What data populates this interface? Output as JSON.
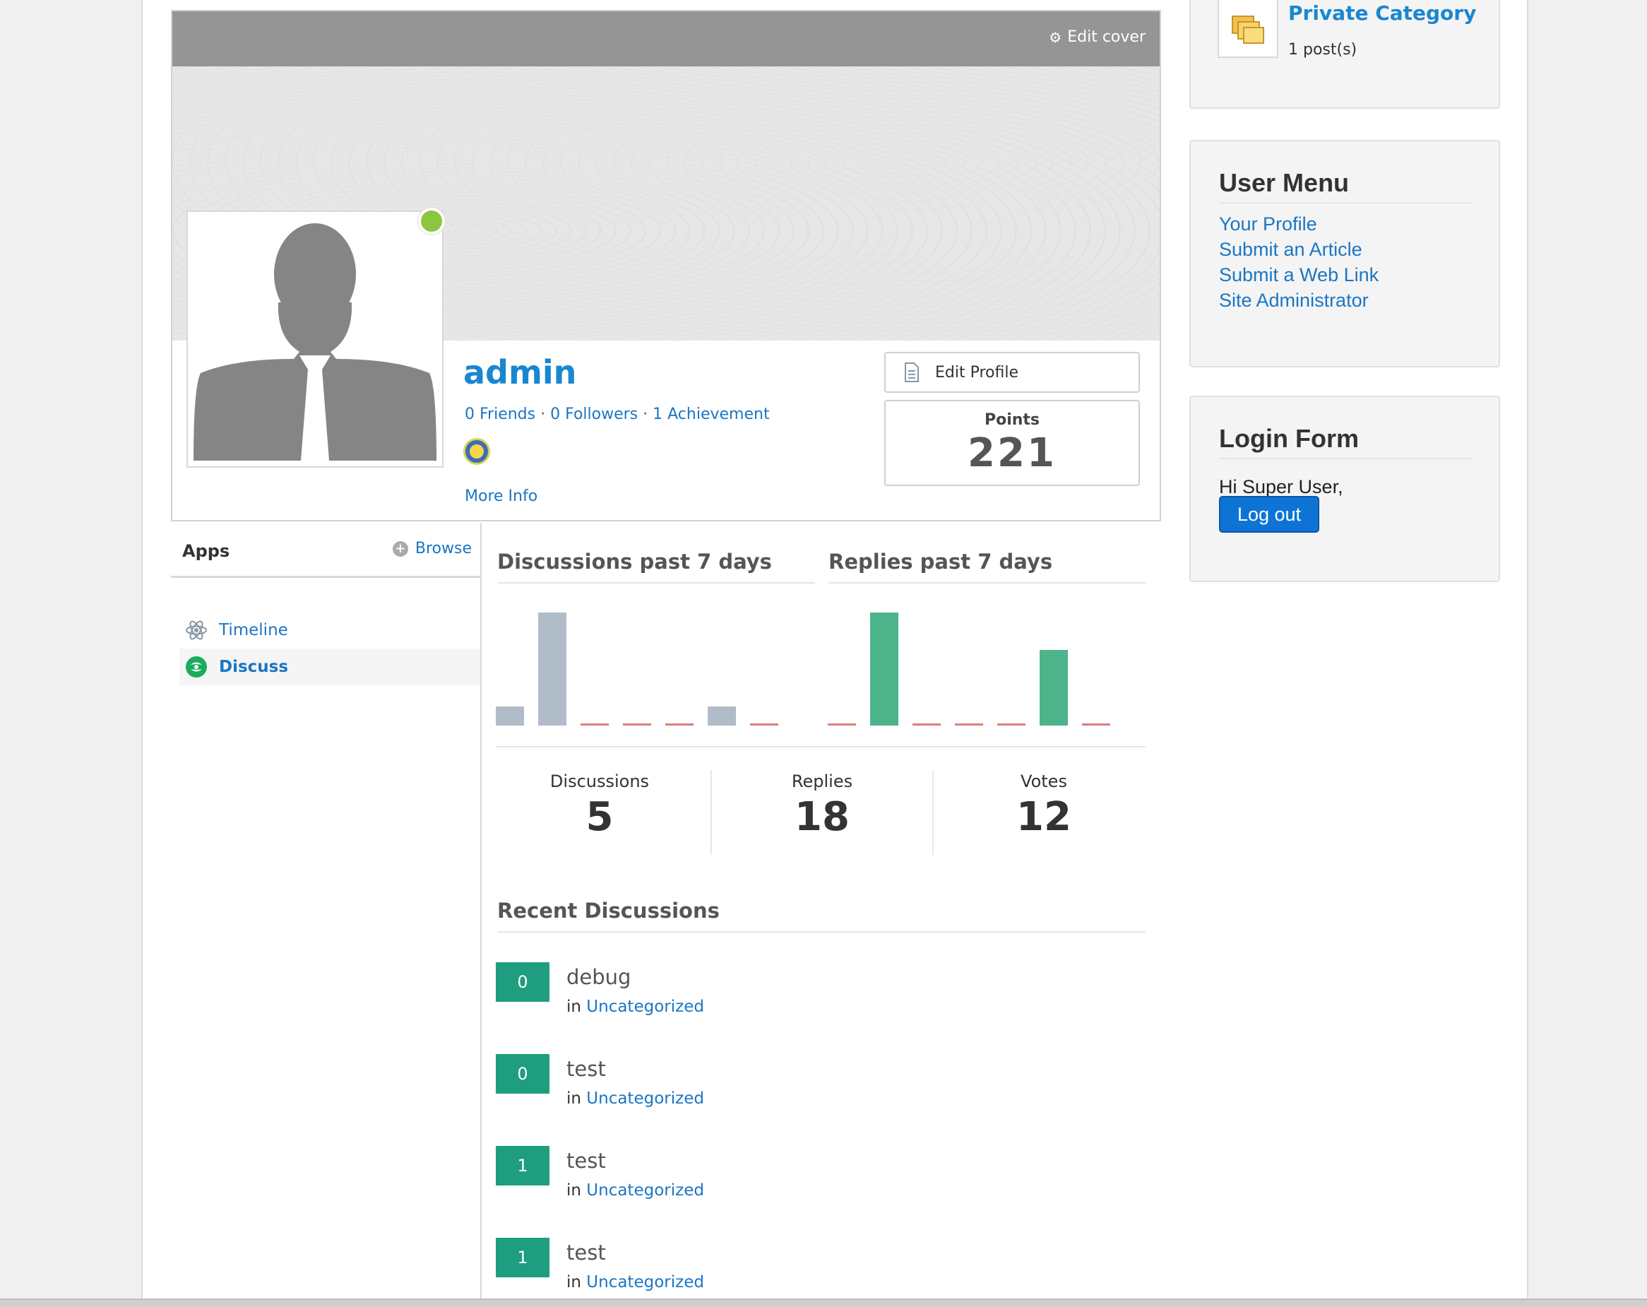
{
  "cover": {
    "edit_label": "Edit cover"
  },
  "profile": {
    "username": "admin",
    "friends": "0 Friends",
    "followers": "0 Followers",
    "achievements": "1 Achievement",
    "separator": "·",
    "more_info": "More Info",
    "edit_profile_label": "Edit Profile",
    "points_label": "Points",
    "points_value": "221",
    "status_color": "#8cc63f"
  },
  "apps": {
    "title": "Apps",
    "browse_label": "Browse",
    "items": [
      {
        "label": "Timeline",
        "icon": "atom-icon"
      },
      {
        "label": "Discuss",
        "icon": "discuss-icon",
        "active": true
      }
    ]
  },
  "charts": {
    "discussions_title": "Discussions past 7 days",
    "replies_title": "Replies past 7 days",
    "discussions_series": [
      1,
      6,
      0,
      0,
      0,
      1,
      0
    ],
    "replies_series": [
      0,
      3,
      0,
      0,
      0,
      2,
      0
    ],
    "discussions_color": "#b0bcc8",
    "replies_color": "#4db38a",
    "zero_color": "#e07b7b"
  },
  "stats": {
    "discussions_label": "Discussions",
    "discussions_value": "5",
    "replies_label": "Replies",
    "replies_value": "18",
    "votes_label": "Votes",
    "votes_value": "12"
  },
  "recent": {
    "title": "Recent Discussions",
    "in_label": "in",
    "items": [
      {
        "count": "0",
        "title": "debug",
        "category": "Uncategorized"
      },
      {
        "count": "0",
        "title": "test",
        "category": "Uncategorized"
      },
      {
        "count": "1",
        "title": "test",
        "category": "Uncategorized"
      },
      {
        "count": "1",
        "title": "test",
        "category": "Uncategorized"
      }
    ]
  },
  "category_module": {
    "name": "Private Category",
    "posts": "1 post(s)"
  },
  "user_menu": {
    "title": "User Menu",
    "links": [
      "Your Profile",
      "Submit an Article",
      "Submit a Web Link",
      "Site Administrator"
    ]
  },
  "login_form": {
    "title": "Login Form",
    "greeting": "Hi Super User,",
    "logout_label": "Log out"
  }
}
